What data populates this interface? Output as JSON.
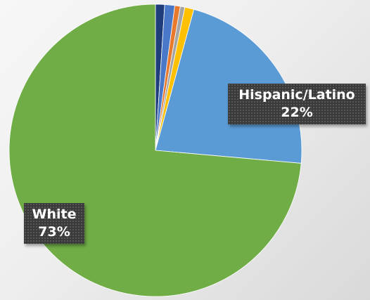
{
  "chart_data": {
    "type": "pie",
    "slices": [
      {
        "category": "",
        "value": 1.0,
        "color": "#1f3d7a"
      },
      {
        "category": "",
        "value": 1.1,
        "color": "#4a78c8"
      },
      {
        "category": "",
        "value": 0.6,
        "color": "#e87a2e"
      },
      {
        "category": "",
        "value": 0.5,
        "color": "#a5a5a5"
      },
      {
        "category": "",
        "value": 1.0,
        "color": "#ffc000"
      },
      {
        "category": "Hispanic/Latino",
        "value": 22,
        "label": "22%",
        "color": "#5b9bd5"
      },
      {
        "category": "White",
        "value": 73,
        "label": "73%",
        "color": "#70ad47"
      }
    ],
    "start": "12 o'clock",
    "direction": "clockwise",
    "legend": "none"
  }
}
